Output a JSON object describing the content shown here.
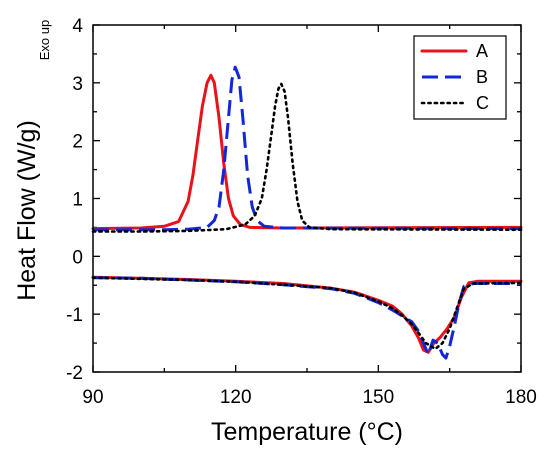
{
  "chart_data": {
    "type": "line",
    "xlabel": "Temperature (°C)",
    "ylabel": "Heat Flow (W/g)",
    "ylabel_note": "Exo up",
    "xlim": [
      90,
      180
    ],
    "ylim": [
      -2,
      4
    ],
    "xticks": [
      90,
      120,
      150,
      180
    ],
    "yticks": [
      -2,
      -1,
      0,
      1,
      2,
      3,
      4
    ],
    "grid": false,
    "legend_position": "top-right",
    "series": [
      {
        "name": "A",
        "color": "#e8121a",
        "dash": "solid",
        "segments": [
          [
            [
              90,
              0.48
            ],
            [
              100,
              0.49
            ],
            [
              105,
              0.52
            ],
            [
              108,
              0.6
            ],
            [
              110,
              0.95
            ],
            [
              111,
              1.4
            ],
            [
              112,
              2.0
            ],
            [
              113,
              2.6
            ],
            [
              114,
              3.0
            ],
            [
              114.8,
              3.13
            ],
            [
              115.5,
              3.0
            ],
            [
              116.5,
              2.4
            ],
            [
              117.5,
              1.6
            ],
            [
              118.5,
              1.0
            ],
            [
              119.5,
              0.7
            ],
            [
              121,
              0.55
            ],
            [
              123,
              0.5
            ],
            [
              130,
              0.49
            ],
            [
              180,
              0.5
            ]
          ],
          [
            [
              90,
              -0.36
            ],
            [
              100,
              -0.38
            ],
            [
              110,
              -0.4
            ],
            [
              120,
              -0.43
            ],
            [
              130,
              -0.47
            ],
            [
              140,
              -0.55
            ],
            [
              145,
              -0.62
            ],
            [
              150,
              -0.76
            ],
            [
              153,
              -0.86
            ],
            [
              155,
              -1.0
            ],
            [
              157,
              -1.2
            ],
            [
              158.5,
              -1.42
            ],
            [
              159.5,
              -1.62
            ],
            [
              160.5,
              -1.66
            ],
            [
              161.5,
              -1.52
            ],
            [
              163,
              -1.4
            ],
            [
              164.5,
              -1.25
            ],
            [
              166,
              -1.05
            ],
            [
              167.5,
              -0.7
            ],
            [
              169,
              -0.46
            ],
            [
              171,
              -0.43
            ],
            [
              180,
              -0.43
            ]
          ]
        ]
      },
      {
        "name": "B",
        "color": "#1227d6",
        "dash": "long-dash",
        "segments": [
          [
            [
              90,
              0.46
            ],
            [
              105,
              0.46
            ],
            [
              110,
              0.47
            ],
            [
              114,
              0.5
            ],
            [
              115.5,
              0.62
            ],
            [
              116.5,
              0.85
            ],
            [
              117.5,
              1.5
            ],
            [
              118.5,
              2.4
            ],
            [
              119.2,
              3.05
            ],
            [
              119.9,
              3.27
            ],
            [
              120.7,
              3.1
            ],
            [
              121.5,
              2.4
            ],
            [
              122.5,
              1.4
            ],
            [
              123.5,
              0.85
            ],
            [
              124.5,
              0.62
            ],
            [
              126,
              0.52
            ],
            [
              130,
              0.49
            ],
            [
              180,
              0.48
            ]
          ],
          [
            [
              90,
              -0.37
            ],
            [
              100,
              -0.38
            ],
            [
              110,
              -0.41
            ],
            [
              120,
              -0.44
            ],
            [
              130,
              -0.49
            ],
            [
              140,
              -0.56
            ],
            [
              145,
              -0.64
            ],
            [
              150,
              -0.8
            ],
            [
              153,
              -0.93
            ],
            [
              155,
              -1.03
            ],
            [
              157,
              -1.13
            ],
            [
              158.5,
              -1.3
            ],
            [
              159.5,
              -1.5
            ],
            [
              160.5,
              -1.7
            ],
            [
              161.5,
              -1.45
            ],
            [
              162.5,
              -1.5
            ],
            [
              163.5,
              -1.7
            ],
            [
              164.2,
              -1.76
            ],
            [
              165,
              -1.55
            ],
            [
              166,
              -1.2
            ],
            [
              167,
              -0.8
            ],
            [
              168,
              -0.52
            ],
            [
              170,
              -0.47
            ],
            [
              180,
              -0.47
            ]
          ]
        ]
      },
      {
        "name": "C",
        "color": "#000000",
        "dash": "dotted",
        "segments": [
          [
            [
              90,
              0.43
            ],
            [
              100,
              0.43
            ],
            [
              110,
              0.44
            ],
            [
              118,
              0.47
            ],
            [
              122,
              0.55
            ],
            [
              124,
              0.7
            ],
            [
              125.5,
              1.0
            ],
            [
              126.5,
              1.5
            ],
            [
              127.5,
              2.1
            ],
            [
              128.3,
              2.6
            ],
            [
              129,
              2.9
            ],
            [
              129.6,
              2.98
            ],
            [
              130.3,
              2.85
            ],
            [
              131,
              2.4
            ],
            [
              132,
              1.6
            ],
            [
              133,
              0.95
            ],
            [
              134,
              0.62
            ],
            [
              135.5,
              0.5
            ],
            [
              140,
              0.47
            ],
            [
              180,
              0.46
            ]
          ],
          [
            [
              90,
              -0.37
            ],
            [
              100,
              -0.39
            ],
            [
              110,
              -0.41
            ],
            [
              120,
              -0.44
            ],
            [
              130,
              -0.49
            ],
            [
              140,
              -0.55
            ],
            [
              145,
              -0.63
            ],
            [
              150,
              -0.78
            ],
            [
              153,
              -0.9
            ],
            [
              155,
              -1.02
            ],
            [
              157,
              -1.17
            ],
            [
              158.5,
              -1.33
            ],
            [
              160,
              -1.5
            ],
            [
              162,
              -1.6
            ],
            [
              163.5,
              -1.5
            ],
            [
              165,
              -1.25
            ],
            [
              166.5,
              -0.9
            ],
            [
              168,
              -0.56
            ],
            [
              170,
              -0.47
            ],
            [
              180,
              -0.46
            ]
          ]
        ]
      }
    ]
  }
}
